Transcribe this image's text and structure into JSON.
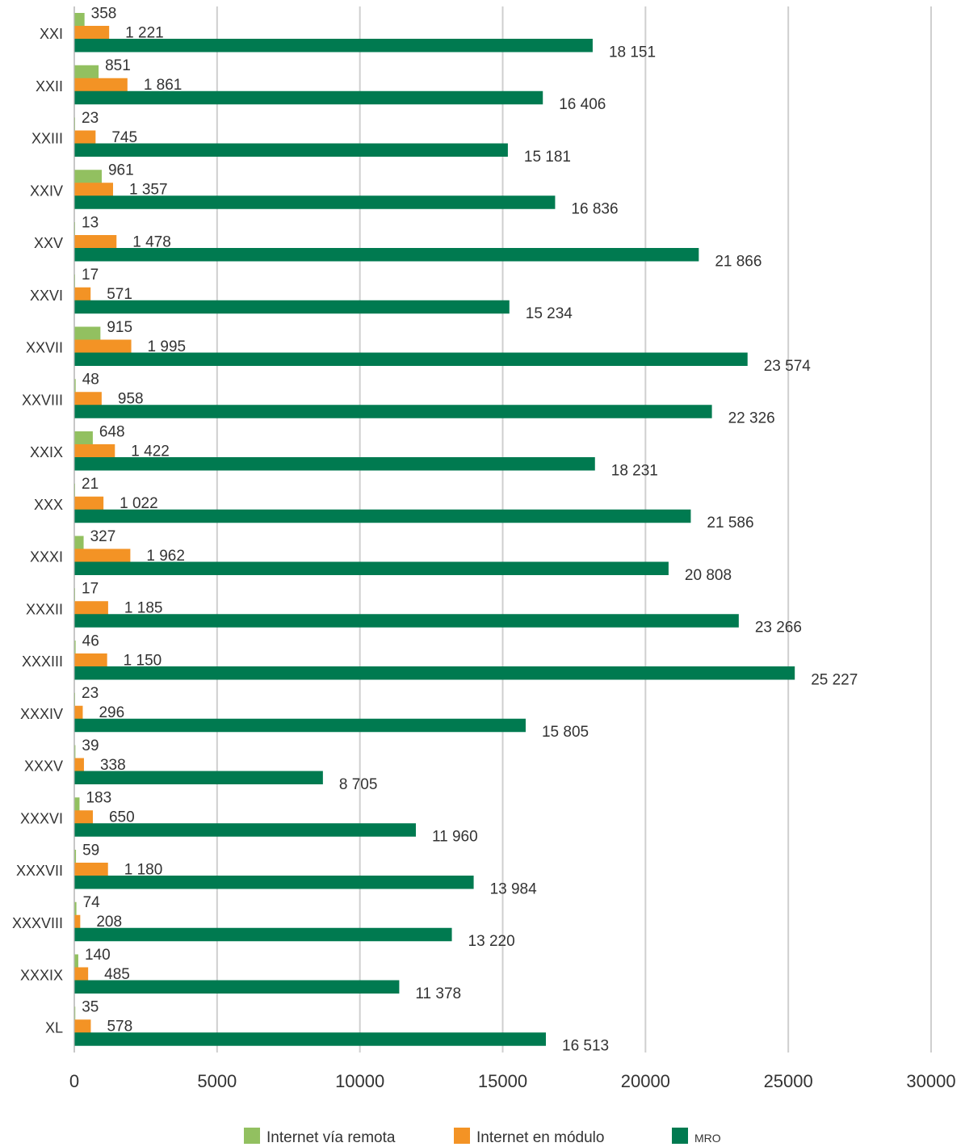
{
  "chart_data": {
    "type": "bar",
    "orientation": "horizontal",
    "categories": [
      "XXI",
      "XXII",
      "XXIII",
      "XXIV",
      "XXV",
      "XXVI",
      "XXVII",
      "XXVIII",
      "XXIX",
      "XXX",
      "XXXI",
      "XXXII",
      "XXXIII",
      "XXXIV",
      "XXXV",
      "XXXVI",
      "XXXVII",
      "XXXVIII",
      "XXXIX",
      "XL"
    ],
    "series": [
      {
        "name": "Internet vía remota",
        "color": "#92c060",
        "values": [
          358,
          851,
          23,
          961,
          13,
          17,
          915,
          48,
          648,
          21,
          327,
          17,
          46,
          23,
          39,
          183,
          59,
          74,
          140,
          35
        ],
        "labels": [
          "358",
          "851",
          "23",
          "961",
          "13",
          "17",
          "915",
          "48",
          "648",
          "21",
          "327",
          "17",
          "46",
          "23",
          "39",
          "183",
          "59",
          "74",
          "140",
          "35"
        ]
      },
      {
        "name": "Internet en módulo",
        "color": "#f39325",
        "values": [
          1221,
          1861,
          745,
          1357,
          1478,
          571,
          1995,
          958,
          1422,
          1022,
          1962,
          1185,
          1150,
          296,
          338,
          650,
          1180,
          208,
          485,
          578
        ],
        "labels": [
          "1 221",
          "1 861",
          "745",
          "1 357",
          "1 478",
          "571",
          "1 995",
          "958",
          "1 422",
          "1 022",
          "1 962",
          "1 185",
          "1 150",
          "296",
          "338",
          "650",
          "1 180",
          "208",
          "485",
          "578"
        ]
      },
      {
        "name": "MRO",
        "color": "#007a50",
        "values": [
          18151,
          16406,
          15181,
          16836,
          21866,
          15234,
          23574,
          22326,
          18231,
          21586,
          20808,
          23266,
          25227,
          15805,
          8705,
          11960,
          13984,
          13220,
          11378,
          16513
        ],
        "labels": [
          "18 151",
          "16 406",
          "15 181",
          "16 836",
          "21 866",
          "15 234",
          "23 574",
          "22 326",
          "18 231",
          "21 586",
          "20 808",
          "23 266",
          "25 227",
          "15 805",
          "8 705",
          "11 960",
          "13 984",
          "13 220",
          "11 378",
          "16 513"
        ]
      }
    ],
    "x_ticks": [
      "0",
      "5000",
      "10000",
      "15000",
      "20000",
      "25000",
      "30000"
    ],
    "xlim": [
      0,
      30000
    ],
    "grid": true,
    "legend_position": "bottom"
  }
}
